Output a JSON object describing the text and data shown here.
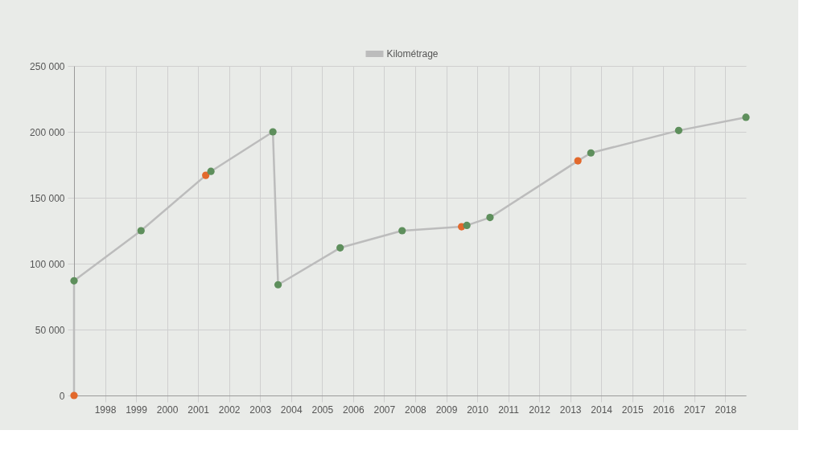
{
  "chart_data": {
    "type": "line",
    "legend": "top",
    "grid": true,
    "marker": "circle",
    "line_style": "solid",
    "xlim": [
      "1997-01",
      "2018-09"
    ],
    "xticks": [
      "1998",
      "1999",
      "2000",
      "2001",
      "2002",
      "2003",
      "2004",
      "2005",
      "2006",
      "2007",
      "2008",
      "2009",
      "2010",
      "2011",
      "2012",
      "2013",
      "2014",
      "2015",
      "2016",
      "2017",
      "2018"
    ],
    "ylim": [
      0,
      250000
    ],
    "yticks": [
      0,
      {
        "value": 50000,
        "label": "50 000"
      },
      {
        "value": 100000,
        "label": "100 000"
      },
      {
        "value": 150000,
        "label": "150 000"
      },
      {
        "value": 200000,
        "label": "200 000"
      },
      {
        "value": 250000,
        "label": "250 000"
      }
    ],
    "series": [
      {
        "name": "Kilométrage",
        "color": "#bcbcbc",
        "colors": [
          "#e2692c",
          "#5e8f5c",
          "#5e8f5c",
          "#e2692c",
          "#5e8f5c",
          "#5e8f5c",
          "#5e8f5c",
          "#5e8f5c",
          "#5e8f5c",
          "#e2692c",
          "#5e8f5c",
          "#5e8f5c",
          "#e2692c",
          "#5e8f5c",
          "#5e8f5c",
          "#5e8f5c"
        ],
        "x": [
          "1997-01",
          "1997-01",
          "1999-03",
          "2001-04",
          "2001-06",
          "2003-06",
          "2003-08",
          "2005-08",
          "2007-08",
          "2009-07",
          "2009-09",
          "2010-06",
          "2013-04",
          "2013-09",
          "2016-07",
          "2018-09"
        ],
        "values": [
          0,
          87000,
          125000,
          167000,
          170000,
          200000,
          84000,
          112000,
          125000,
          128000,
          129000,
          135000,
          178000,
          184000,
          201000,
          211000
        ]
      }
    ]
  }
}
